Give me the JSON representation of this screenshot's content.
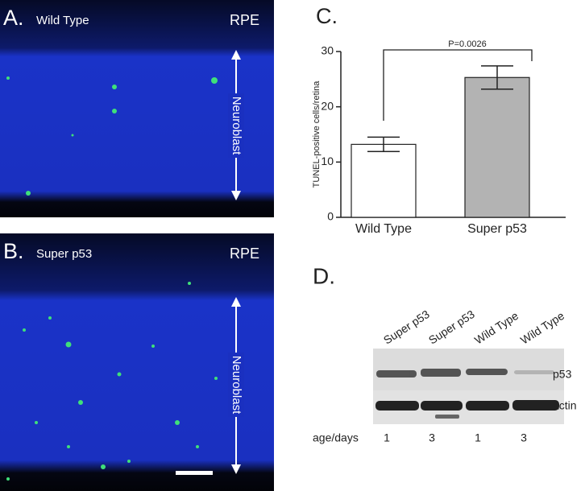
{
  "micrographs": [
    {
      "label": "A.",
      "title": "Wild Type",
      "layer": "RPE",
      "region": "Neuroblast"
    },
    {
      "label": "B.",
      "title": "Super p53",
      "layer": "RPE",
      "region": "Neuroblast"
    }
  ],
  "chart_data": {
    "type": "bar",
    "panel_label": "C.",
    "ylabel": "TUNEL-positive cells/retina",
    "categories": [
      "Wild Type",
      "Super p53"
    ],
    "values": [
      13.2,
      25.3
    ],
    "errors": [
      1.3,
      2.1
    ],
    "colors": [
      "#ffffff",
      "#b3b3b3"
    ],
    "ylim": [
      0,
      30
    ],
    "yticks": [
      0,
      10,
      20,
      30
    ],
    "annotation": "P=0.0026"
  },
  "blot": {
    "label": "D.",
    "lanes": [
      "Super p53",
      "Super p53",
      "Wild Type",
      "Wild Type"
    ],
    "rows": [
      "p53",
      "actin"
    ],
    "age_label": "age/days",
    "ages": [
      1,
      3,
      1,
      3
    ]
  }
}
